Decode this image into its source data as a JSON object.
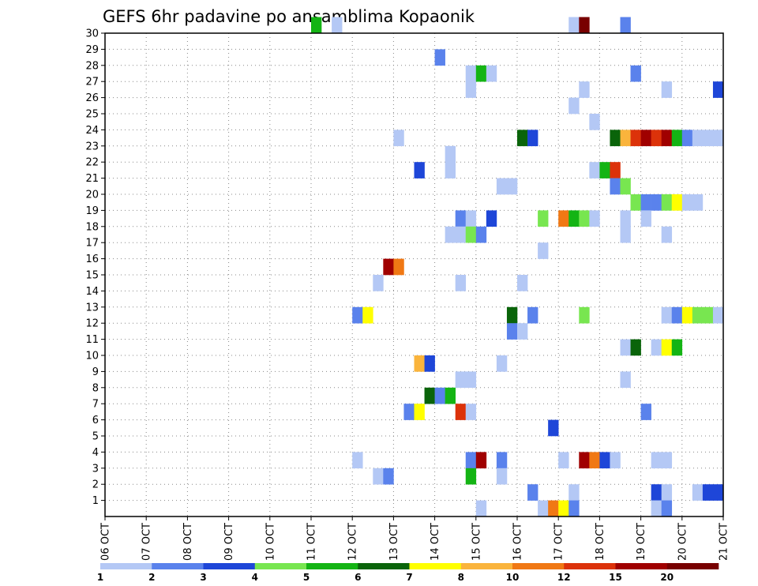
{
  "chart_data": {
    "type": "heatmap",
    "title": "GEFS 6hr padavine po ansamblima Kopaonik",
    "x_ticks": [
      "06 OCT",
      "07 OCT",
      "08 OCT",
      "09 OCT",
      "10 OCT",
      "11 OCT",
      "12 OCT",
      "13 OCT",
      "14 OCT",
      "15 OCT",
      "16 OCT",
      "17 OCT",
      "18 OCT",
      "19 OCT",
      "20 OCT",
      "21 OCT"
    ],
    "y_ticks": [
      "1",
      "2",
      "3",
      "4",
      "5",
      "6",
      "7",
      "8",
      "9",
      "10",
      "11",
      "12",
      "13",
      "14",
      "15",
      "16",
      "17",
      "18",
      "19",
      "20",
      "21",
      "22",
      "23",
      "24",
      "25",
      "26",
      "27",
      "28",
      "29",
      "30"
    ],
    "ylim": [
      0,
      30
    ],
    "xlim": [
      0,
      60
    ],
    "x_unit": "6-hour steps from 06 OCT 00Z",
    "grid": true,
    "levels": [
      "1",
      "2",
      "3",
      "4",
      "5",
      "6",
      "7",
      "8",
      "10",
      "12",
      "15",
      "20"
    ],
    "colors": [
      "#b4c8f5",
      "#5a82ec",
      "#1e46d8",
      "#78e650",
      "#14b414",
      "#0a640a",
      "#ffff00",
      "#fab43c",
      "#f07814",
      "#dc320a",
      "#a00000",
      "#780000"
    ],
    "colorbar_labels": [
      "1",
      "2",
      "3",
      "4",
      "5",
      "6",
      "7",
      "8",
      "10",
      "12",
      "15",
      "20"
    ],
    "cells_note": "each cell: [time_step_index, member, level_index]",
    "cells": [
      [
        20,
        30,
        4
      ],
      [
        22,
        30,
        0
      ],
      [
        45,
        30,
        0
      ],
      [
        46,
        30,
        11
      ],
      [
        50,
        30,
        1
      ],
      [
        32,
        28,
        1
      ],
      [
        35,
        27,
        0
      ],
      [
        36,
        27,
        4
      ],
      [
        37,
        27,
        0
      ],
      [
        51,
        27,
        1
      ],
      [
        35,
        26,
        0
      ],
      [
        46,
        26,
        0
      ],
      [
        54,
        26,
        0
      ],
      [
        59,
        26,
        2
      ],
      [
        45,
        25,
        0
      ],
      [
        47,
        24,
        0
      ],
      [
        28,
        23,
        0
      ],
      [
        40,
        23,
        5
      ],
      [
        41,
        23,
        2
      ],
      [
        49,
        23,
        5
      ],
      [
        50,
        23,
        7
      ],
      [
        51,
        23,
        9
      ],
      [
        52,
        23,
        10
      ],
      [
        53,
        23,
        9
      ],
      [
        54,
        23,
        10
      ],
      [
        55,
        23,
        4
      ],
      [
        56,
        23,
        1
      ],
      [
        57,
        23,
        0
      ],
      [
        58,
        23,
        0
      ],
      [
        59,
        23,
        0
      ],
      [
        33,
        22,
        0
      ],
      [
        30,
        21,
        2
      ],
      [
        33,
        21,
        0
      ],
      [
        47,
        21,
        0
      ],
      [
        48,
        21,
        4
      ],
      [
        49,
        21,
        9
      ],
      [
        38,
        20,
        0
      ],
      [
        39,
        20,
        0
      ],
      [
        49,
        20,
        1
      ],
      [
        50,
        20,
        3
      ],
      [
        51,
        19,
        3
      ],
      [
        52,
        19,
        1
      ],
      [
        53,
        19,
        1
      ],
      [
        54,
        19,
        3
      ],
      [
        55,
        19,
        6
      ],
      [
        56,
        19,
        0
      ],
      [
        57,
        19,
        0
      ],
      [
        34,
        18,
        1
      ],
      [
        35,
        18,
        0
      ],
      [
        37,
        18,
        2
      ],
      [
        42,
        18,
        3
      ],
      [
        44,
        18,
        8
      ],
      [
        45,
        18,
        4
      ],
      [
        46,
        18,
        3
      ],
      [
        47,
        18,
        0
      ],
      [
        50,
        18,
        0
      ],
      [
        52,
        18,
        0
      ],
      [
        33,
        17,
        0
      ],
      [
        34,
        17,
        0
      ],
      [
        35,
        17,
        3
      ],
      [
        36,
        17,
        1
      ],
      [
        50,
        17,
        0
      ],
      [
        54,
        17,
        0
      ],
      [
        42,
        16,
        0
      ],
      [
        27,
        15,
        10
      ],
      [
        28,
        15,
        8
      ],
      [
        26,
        14,
        0
      ],
      [
        34,
        14,
        0
      ],
      [
        40,
        14,
        0
      ],
      [
        24,
        12,
        1
      ],
      [
        25,
        12,
        6
      ],
      [
        39,
        12,
        5
      ],
      [
        41,
        12,
        1
      ],
      [
        46,
        12,
        3
      ],
      [
        54,
        12,
        0
      ],
      [
        55,
        12,
        1
      ],
      [
        56,
        12,
        6
      ],
      [
        57,
        12,
        3
      ],
      [
        58,
        12,
        3
      ],
      [
        59,
        12,
        0
      ],
      [
        39,
        11,
        1
      ],
      [
        40,
        11,
        0
      ],
      [
        50,
        10,
        0
      ],
      [
        51,
        10,
        5
      ],
      [
        53,
        10,
        0
      ],
      [
        54,
        10,
        6
      ],
      [
        55,
        10,
        4
      ],
      [
        30,
        9,
        7
      ],
      [
        31,
        9,
        2
      ],
      [
        38,
        9,
        0
      ],
      [
        34,
        8,
        0
      ],
      [
        35,
        8,
        0
      ],
      [
        50,
        8,
        0
      ],
      [
        31,
        7,
        5
      ],
      [
        32,
        7,
        1
      ],
      [
        33,
        7,
        4
      ],
      [
        29,
        6,
        1
      ],
      [
        30,
        6,
        6
      ],
      [
        34,
        6,
        9
      ],
      [
        35,
        6,
        0
      ],
      [
        52,
        6,
        1
      ],
      [
        43,
        5,
        2
      ],
      [
        24,
        3,
        0
      ],
      [
        35,
        3,
        1
      ],
      [
        36,
        3,
        10
      ],
      [
        38,
        3,
        1
      ],
      [
        44,
        3,
        0
      ],
      [
        46,
        3,
        10
      ],
      [
        47,
        3,
        8
      ],
      [
        48,
        3,
        2
      ],
      [
        49,
        3,
        0
      ],
      [
        53,
        3,
        0
      ],
      [
        54,
        3,
        0
      ],
      [
        26,
        2,
        0
      ],
      [
        27,
        2,
        1
      ],
      [
        35,
        2,
        4
      ],
      [
        38,
        2,
        0
      ],
      [
        41,
        1,
        1
      ],
      [
        45,
        1,
        0
      ],
      [
        53,
        1,
        2
      ],
      [
        54,
        1,
        0
      ],
      [
        57,
        1,
        0
      ],
      [
        58,
        1,
        2
      ],
      [
        59,
        1,
        2
      ],
      [
        36,
        0,
        0
      ],
      [
        42,
        0,
        0
      ],
      [
        43,
        0,
        8
      ],
      [
        44,
        0,
        6
      ],
      [
        45,
        0,
        1
      ],
      [
        53,
        0,
        0
      ],
      [
        54,
        0,
        1
      ]
    ]
  }
}
